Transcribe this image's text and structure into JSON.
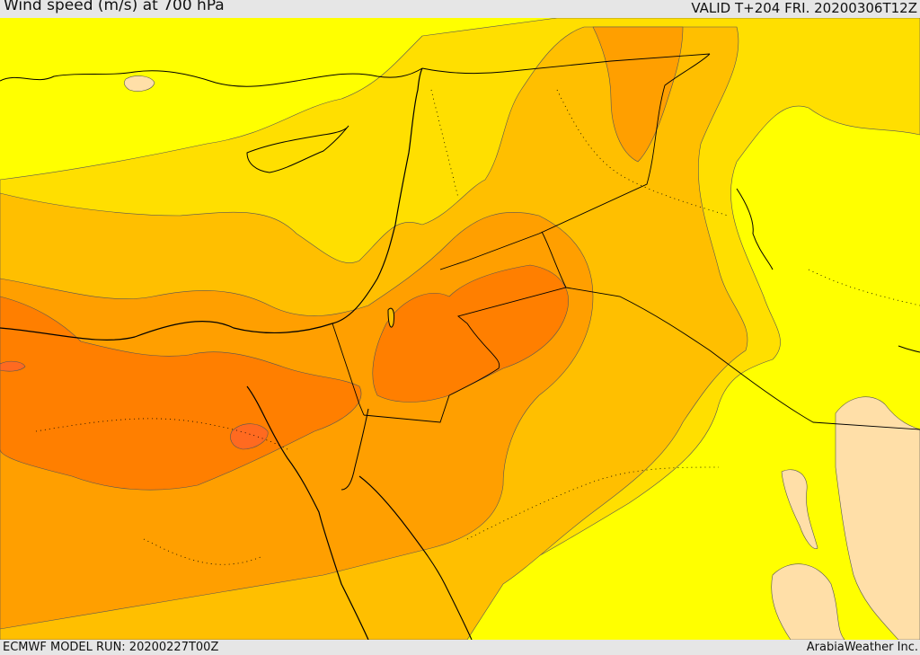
{
  "header": {
    "title": "Wind speed (m/s) at 700 hPa",
    "valid_time": "VALID T+204 FRI. 20200306T12Z"
  },
  "footer": {
    "model_run": "ECMWF MODEL RUN: 20200227T00Z",
    "credit": "ArabiaWeather Inc."
  },
  "map": {
    "variable": "wind speed",
    "level": "700 hPa",
    "shading_colors": {
      "lightest_band": "#ffdfa8",
      "band_1": "#ffff00",
      "band_2": "#ffdf00",
      "band_3": "#ffbf00",
      "band_4": "#ff9f00",
      "band_5": "#ff7f00",
      "band_6": "#ff6a20"
    },
    "coastline_color": "#000000",
    "border_style": "solid black lines for borders, dotted lines for secondary boundaries"
  }
}
